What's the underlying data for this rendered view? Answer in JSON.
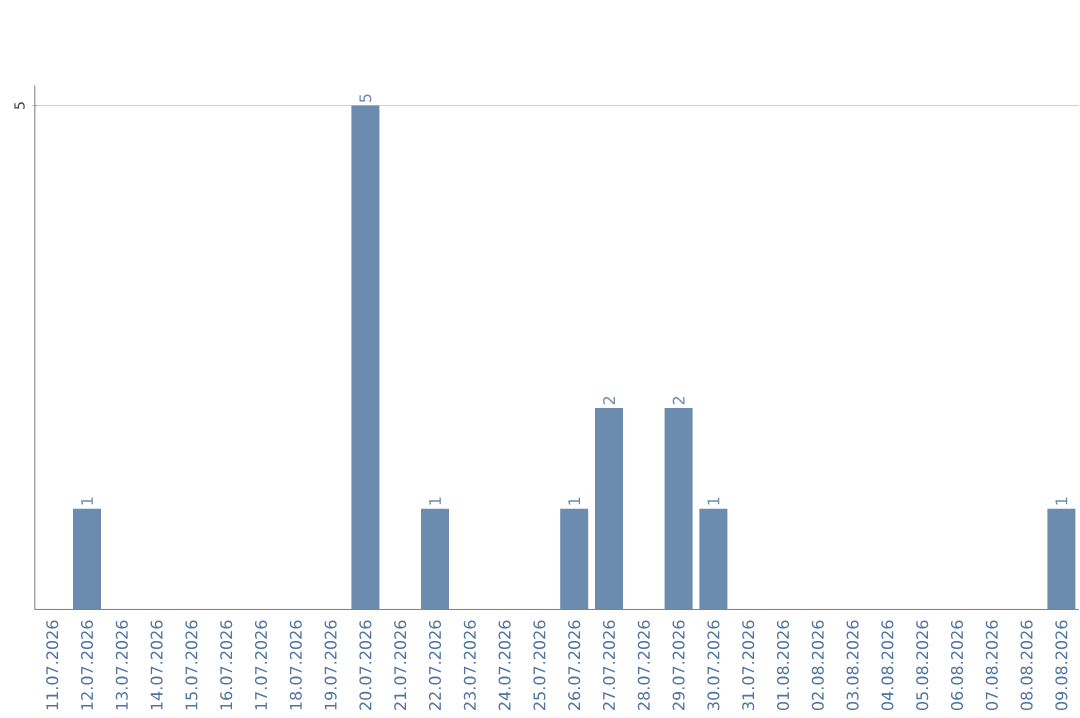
{
  "chart_data": {
    "type": "bar",
    "categories": [
      "11.07.2026",
      "12.07.2026",
      "13.07.2026",
      "14.07.2026",
      "15.07.2026",
      "16.07.2026",
      "17.07.2026",
      "18.07.2026",
      "19.07.2026",
      "20.07.2026",
      "21.07.2026",
      "22.07.2026",
      "23.07.2026",
      "24.07.2026",
      "25.07.2026",
      "26.07.2026",
      "27.07.2026",
      "28.07.2026",
      "29.07.2026",
      "30.07.2026",
      "31.07.2026",
      "01.08.2026",
      "02.08.2026",
      "03.08.2026",
      "04.08.2026",
      "05.08.2026",
      "06.08.2026",
      "07.08.2026",
      "08.08.2026",
      "09.08.2026"
    ],
    "values": [
      0,
      1,
      0,
      0,
      0,
      0,
      0,
      0,
      0,
      5,
      0,
      1,
      0,
      0,
      0,
      1,
      2,
      0,
      2,
      1,
      0,
      0,
      0,
      0,
      0,
      0,
      0,
      0,
      0,
      1
    ],
    "value_labels": [
      null,
      "1",
      null,
      null,
      null,
      null,
      null,
      null,
      null,
      "5",
      null,
      "1",
      null,
      null,
      null,
      "1",
      "2",
      null,
      "2",
      "1",
      null,
      null,
      null,
      null,
      null,
      null,
      null,
      null,
      null,
      "1"
    ],
    "color": "#6b8cae",
    "ylim": [
      0,
      5.2
    ],
    "yticks": [
      5
    ],
    "grid": "y"
  }
}
